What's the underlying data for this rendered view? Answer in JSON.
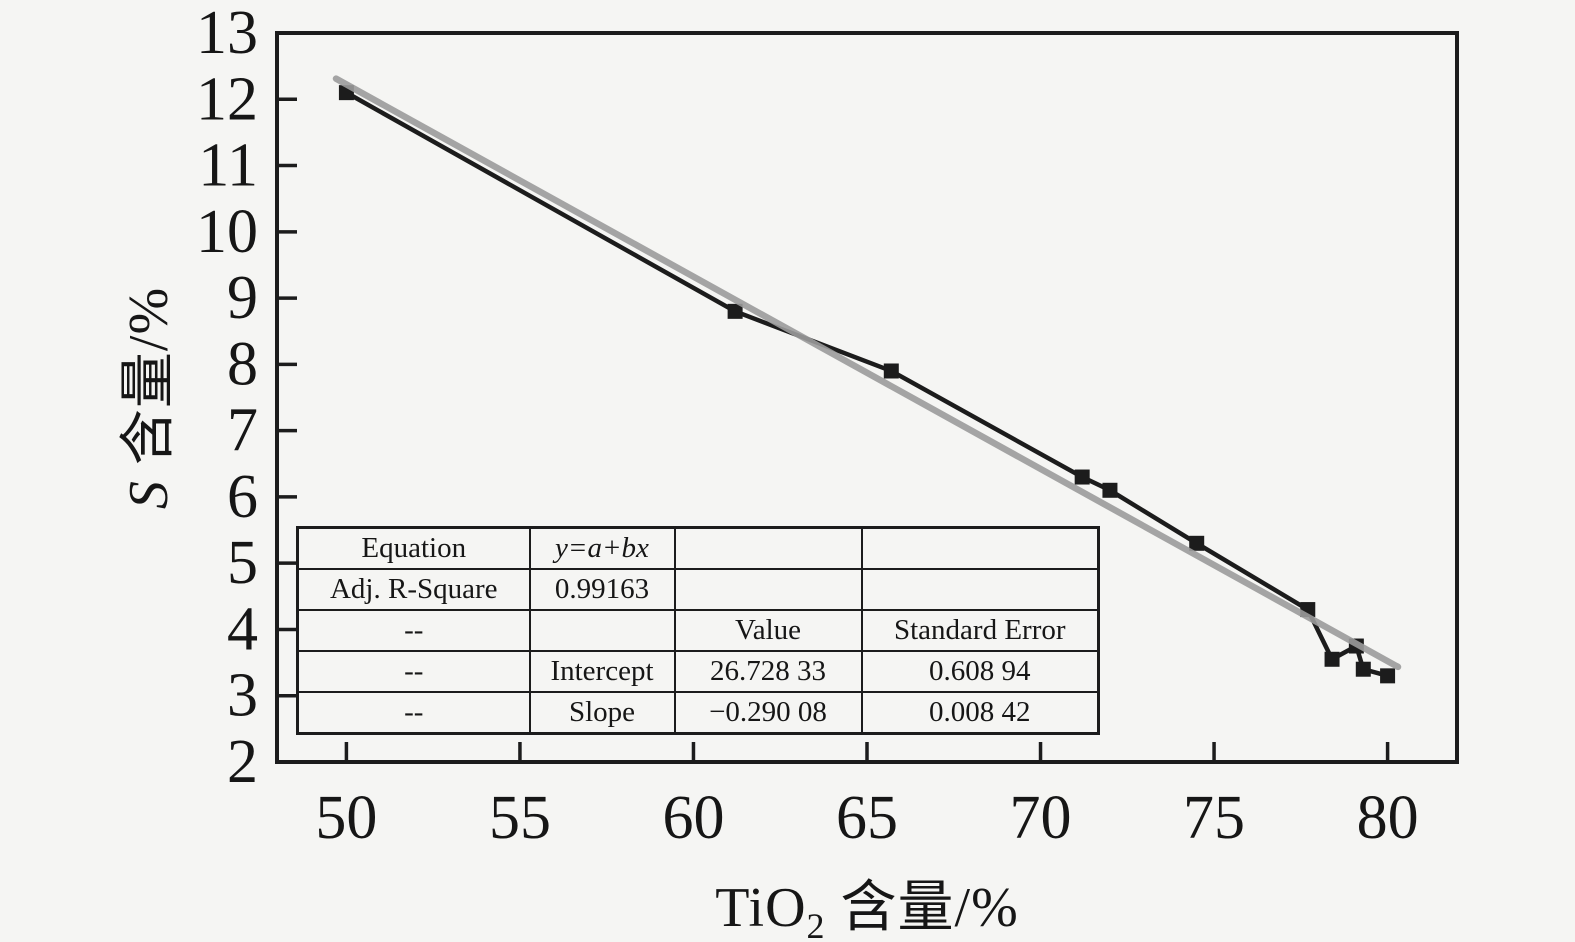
{
  "page": {
    "background_color": "#f5f5f3",
    "text_color": "#161616"
  },
  "chart_data": {
    "type": "scatter",
    "title": "",
    "xlabel": "TiO₂ 含量/%",
    "xlabel_parts": {
      "base": "TiO",
      "sub": "2",
      "rest": " 含量/%"
    },
    "ylabel": "S 含量/%",
    "ylabel_parts": {
      "var": "S",
      "rest": " 含量/%"
    },
    "xlim": [
      48,
      82
    ],
    "ylim": [
      2,
      13
    ],
    "x_ticks": [
      50,
      55,
      60,
      65,
      70,
      75,
      80
    ],
    "y_ticks": [
      2,
      3,
      4,
      5,
      6,
      7,
      8,
      9,
      10,
      11,
      12,
      13
    ],
    "grid": false,
    "legend": "none",
    "axis_color": "#1c1c1c",
    "text_color": "#161616",
    "series": [
      {
        "name": "measured-data",
        "type": "scatter-line",
        "marker": "square",
        "marker_size": 15,
        "color": "#1c1c1c",
        "points": [
          [
            50.0,
            12.1
          ],
          [
            61.2,
            8.8
          ],
          [
            65.7,
            7.9
          ],
          [
            71.2,
            6.3
          ],
          [
            72.0,
            6.1
          ],
          [
            74.5,
            5.3
          ],
          [
            77.7,
            4.3
          ],
          [
            78.4,
            3.55
          ],
          [
            79.1,
            3.75
          ],
          [
            79.3,
            3.4
          ],
          [
            80.0,
            3.3
          ]
        ]
      },
      {
        "name": "linear-fit",
        "type": "line",
        "color": "#9b9b9b",
        "x_range": [
          49.7,
          80.3
        ],
        "intercept": 26.72833,
        "slope": -0.29008
      }
    ],
    "stats_table": {
      "rows": [
        [
          "Equation",
          "y=a+bx",
          "",
          ""
        ],
        [
          "Adj. R-Square",
          "0.99163",
          "",
          ""
        ],
        [
          "--",
          "",
          "Value",
          "Standard Error"
        ],
        [
          "--",
          "Intercept",
          "26.728 33",
          "0.608 94"
        ],
        [
          "--",
          "Slope",
          "−0.290 08",
          "0.008 42"
        ]
      ]
    }
  }
}
